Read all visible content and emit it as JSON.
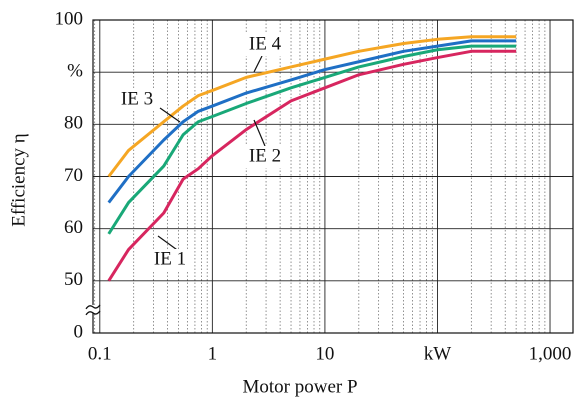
{
  "chart_data": {
    "type": "line",
    "x_label": "Motor power P",
    "y_label": "Efficiency η",
    "xscale": "log",
    "xlim": [
      0.087,
      1600
    ],
    "xticks": [
      0.1,
      1,
      10,
      {
        "value": 100,
        "label": "kW"
      },
      {
        "value": 1000,
        "label": "1,000"
      }
    ],
    "minor_grid": true,
    "ylim": [
      0,
      100
    ],
    "ybreak": [
      0,
      50
    ],
    "yticks": [
      0,
      50,
      60,
      70,
      80,
      {
        "value": 90,
        "label": "%"
      },
      100
    ],
    "grid": true,
    "x": [
      0.12,
      0.18,
      0.37,
      0.55,
      0.75,
      1,
      2,
      5,
      10,
      20,
      50,
      100,
      200,
      500
    ],
    "series": [
      {
        "name": "IE 1",
        "color": "#d7265f",
        "values": [
          50,
          56,
          63,
          69.5,
          71.5,
          74,
          79,
          84.5,
          87,
          89.5,
          91.5,
          92.8,
          94,
          94
        ]
      },
      {
        "name": "IE 2",
        "color": "#19a878",
        "values": [
          59,
          65,
          72,
          78,
          80.5,
          81.5,
          84,
          87,
          89,
          91,
          93,
          94.3,
          95,
          95
        ]
      },
      {
        "name": "IE 3",
        "color": "#1f6fc5",
        "values": [
          65,
          70,
          77,
          80.5,
          82.5,
          83.5,
          86,
          88.5,
          90.5,
          92,
          94,
          95,
          96,
          96
        ]
      },
      {
        "name": "IE 4",
        "color": "#f5a623",
        "values": [
          70,
          75,
          80.5,
          83.5,
          85.5,
          86.5,
          89,
          91,
          92.5,
          94,
          95.5,
          96.3,
          96.8,
          96.8
        ]
      }
    ]
  }
}
